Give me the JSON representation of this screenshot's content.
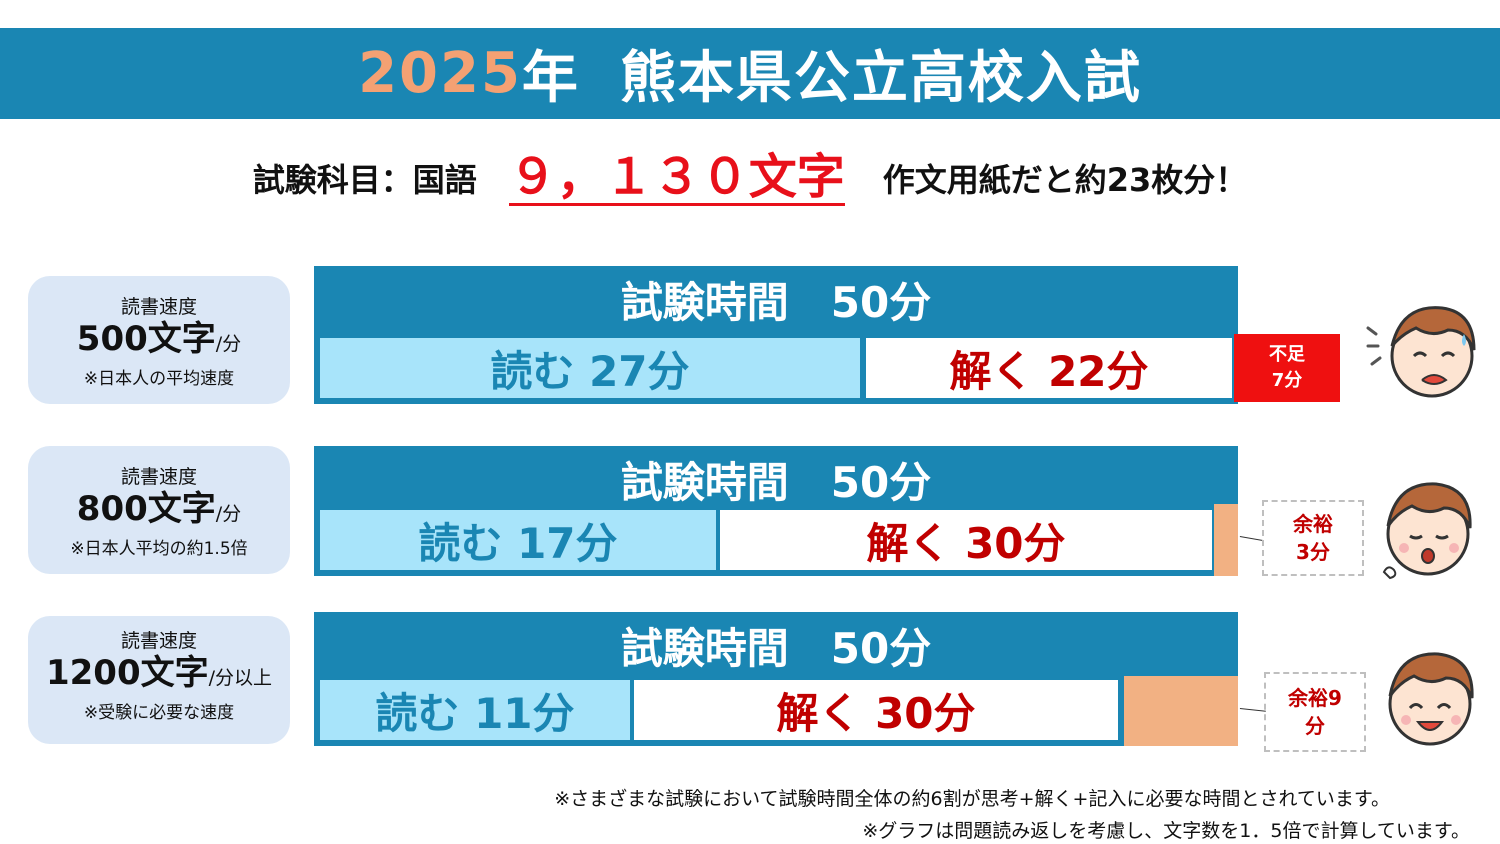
{
  "title": {
    "year": "2025",
    "year_suffix": "年",
    "name": "熊本県公立高校入試"
  },
  "subject": {
    "label": "試験科目：国語",
    "char_count": "９，１３０文字",
    "note": "作文用紙だと約23枚分！"
  },
  "rows": [
    {
      "label": {
        "line1": "読書速度",
        "speed": "500文字",
        "unit": "/分",
        "note": "※日本人の平均速度"
      },
      "bar_title": "試験時間　50分",
      "read": "読む 27分",
      "solve": "解く 22分",
      "extra": {
        "kind": "shortage",
        "line1": "不足",
        "line2": "7分"
      }
    },
    {
      "label": {
        "line1": "読書速度",
        "speed": "800文字",
        "unit": "/分",
        "note": "※日本人平均の約1.5倍"
      },
      "bar_title": "試験時間　50分",
      "read": "読む 17分",
      "solve": "解く 30分",
      "extra": {
        "kind": "spare",
        "line1": "余裕",
        "line2": "3分"
      }
    },
    {
      "label": {
        "line1": "読書速度",
        "speed": "1200文字",
        "unit": "/分以上",
        "note": "※受験に必要な速度"
      },
      "bar_title": "試験時間　50分",
      "read": "読む 11分",
      "solve": "解く 30分",
      "extra": {
        "kind": "spare",
        "line1": "余裕9",
        "line2": "分"
      }
    }
  ],
  "footnotes": [
    "※さまざまな試験において試験時間全体の約6割が思考+解く+記入に必要な時間とされています。",
    "※グラフは問題読み返しを考慮し、文字数を1．5倍で計算しています。"
  ],
  "colors": {
    "banner": "#1a86b3",
    "year": "#f4a173",
    "accent_red": "#e8101a",
    "read": "#a8e4fa",
    "solve_text": "#c00000",
    "spare": "#f2b183",
    "label_bg": "#dbe7f6"
  },
  "icons": [
    "worried-boy-icon",
    "surprised-boy-icon",
    "happy-boy-icon"
  ]
}
